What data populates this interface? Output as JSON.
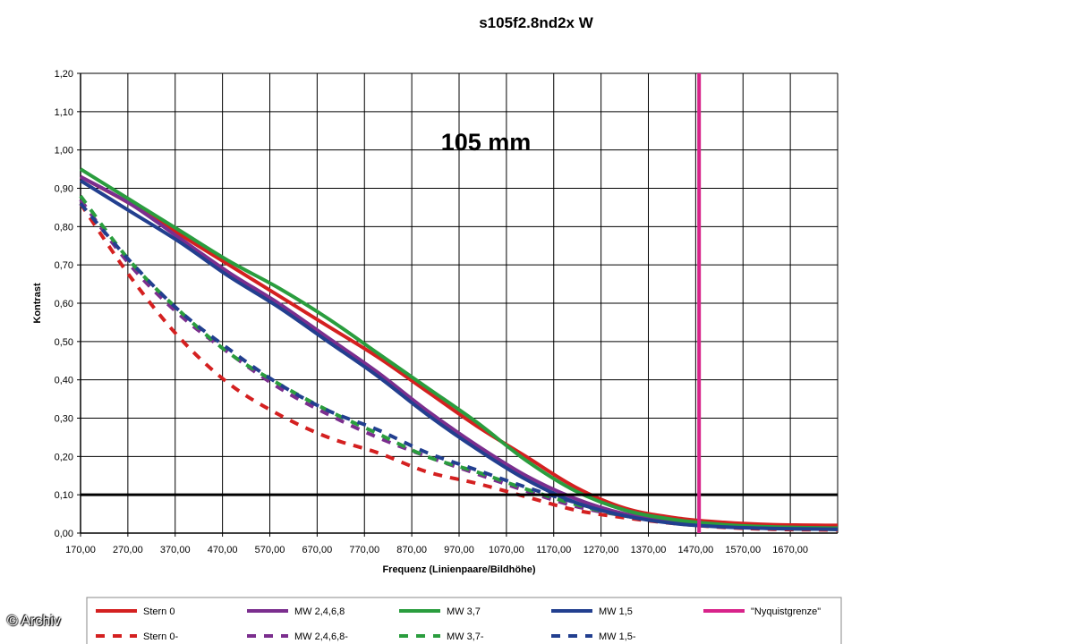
{
  "chart_data": {
    "type": "line",
    "title": "s105f2.8nd2x W",
    "annotation": "105 mm",
    "xlabel": "Frequenz (Linienpaare/Bildhöhe)",
    "ylabel": "Kontrast",
    "xlim": [
      170,
      1700
    ],
    "ylim": [
      0,
      1.2
    ],
    "x_ticks": [
      "170,00",
      "270,00",
      "370,00",
      "470,00",
      "570,00",
      "670,00",
      "770,00",
      "870,00",
      "970,00",
      "1070,00",
      "1170,00",
      "1270,00",
      "1370,00",
      "1470,00",
      "1570,00",
      "1670,00"
    ],
    "y_ticks": [
      "0,00",
      "0,10",
      "0,20",
      "0,30",
      "0,40",
      "0,50",
      "0,60",
      "0,70",
      "0,80",
      "0,90",
      "1,00",
      "1,10",
      "1,20"
    ],
    "grid": true,
    "reference_line_y": 0.1,
    "nyquist_x": 1420,
    "legend_position": "bottom",
    "colors": {
      "red": "#d42020",
      "purple": "#7b2e8e",
      "green": "#2a9d3e",
      "blue": "#223f8f",
      "magenta": "#d8238a"
    },
    "series": [
      {
        "name": "Stern 0",
        "color": "#d42020",
        "dash": false,
        "x": [
          170,
          270,
          370,
          470,
          570,
          670,
          770,
          870,
          970,
          1070,
          1170,
          1270,
          1370,
          1470,
          1570,
          1700
        ],
        "values": [
          0.93,
          0.86,
          0.78,
          0.7,
          0.62,
          0.54,
          0.46,
          0.37,
          0.28,
          0.2,
          0.12,
          0.065,
          0.04,
          0.028,
          0.022,
          0.02
        ]
      },
      {
        "name": "MW 2,4,6,8",
        "color": "#7b2e8e",
        "dash": false,
        "x": [
          170,
          270,
          370,
          470,
          570,
          670,
          770,
          870,
          970,
          1070,
          1170,
          1270,
          1370,
          1470,
          1570,
          1700
        ],
        "values": [
          0.93,
          0.86,
          0.77,
          0.68,
          0.6,
          0.51,
          0.42,
          0.32,
          0.23,
          0.15,
          0.09,
          0.05,
          0.03,
          0.02,
          0.015,
          0.012
        ]
      },
      {
        "name": "MW 3,7",
        "color": "#2a9d3e",
        "dash": false,
        "x": [
          170,
          270,
          370,
          470,
          570,
          670,
          770,
          870,
          970,
          1070,
          1170,
          1270,
          1370,
          1470,
          1570,
          1700
        ],
        "values": [
          0.95,
          0.87,
          0.79,
          0.71,
          0.64,
          0.56,
          0.47,
          0.38,
          0.29,
          0.19,
          0.11,
          0.06,
          0.035,
          0.022,
          0.016,
          0.013
        ]
      },
      {
        "name": "MW 1,5",
        "color": "#223f8f",
        "dash": false,
        "x": [
          170,
          270,
          370,
          470,
          570,
          670,
          770,
          870,
          970,
          1070,
          1170,
          1270,
          1370,
          1470,
          1570,
          1700
        ],
        "values": [
          0.92,
          0.84,
          0.76,
          0.67,
          0.59,
          0.5,
          0.41,
          0.31,
          0.22,
          0.14,
          0.08,
          0.045,
          0.025,
          0.016,
          0.012,
          0.01
        ]
      },
      {
        "name": "\"Nyquistgrenze\"",
        "color": "#d8238a",
        "dash": false,
        "x": [],
        "values": []
      },
      {
        "name": "Stern 0-",
        "color": "#d42020",
        "dash": true,
        "x": [
          170,
          270,
          370,
          470,
          570,
          670,
          770,
          870,
          970,
          1070,
          1170,
          1270,
          1370,
          1470,
          1570,
          1700
        ],
        "values": [
          0.86,
          0.67,
          0.51,
          0.39,
          0.31,
          0.25,
          0.21,
          0.16,
          0.13,
          0.095,
          0.06,
          0.04,
          0.025,
          0.015,
          0.01,
          0.008
        ]
      },
      {
        "name": "MW 2,4,6,8-",
        "color": "#7b2e8e",
        "dash": true,
        "x": [
          170,
          270,
          370,
          470,
          570,
          670,
          770,
          870,
          970,
          1070,
          1170,
          1270,
          1370,
          1470,
          1570,
          1700
        ],
        "values": [
          0.87,
          0.7,
          0.57,
          0.47,
          0.38,
          0.31,
          0.25,
          0.2,
          0.155,
          0.11,
          0.07,
          0.045,
          0.03,
          0.018,
          0.012,
          0.01
        ]
      },
      {
        "name": "MW 3,7-",
        "color": "#2a9d3e",
        "dash": true,
        "x": [
          170,
          270,
          370,
          470,
          570,
          670,
          770,
          870,
          970,
          1070,
          1170,
          1270,
          1370,
          1470,
          1570,
          1700
        ],
        "values": [
          0.88,
          0.71,
          0.58,
          0.47,
          0.39,
          0.32,
          0.26,
          0.2,
          0.16,
          0.115,
          0.075,
          0.045,
          0.03,
          0.018,
          0.012,
          0.01
        ]
      },
      {
        "name": "MW 1,5-",
        "color": "#223f8f",
        "dash": true,
        "x": [
          170,
          270,
          370,
          470,
          570,
          670,
          770,
          870,
          970,
          1070,
          1170,
          1270,
          1370,
          1470,
          1570,
          1700
        ],
        "values": [
          0.86,
          0.71,
          0.58,
          0.48,
          0.39,
          0.32,
          0.27,
          0.21,
          0.165,
          0.12,
          0.08,
          0.05,
          0.03,
          0.02,
          0.013,
          0.01
        ]
      }
    ]
  },
  "watermark": "© Archiv"
}
